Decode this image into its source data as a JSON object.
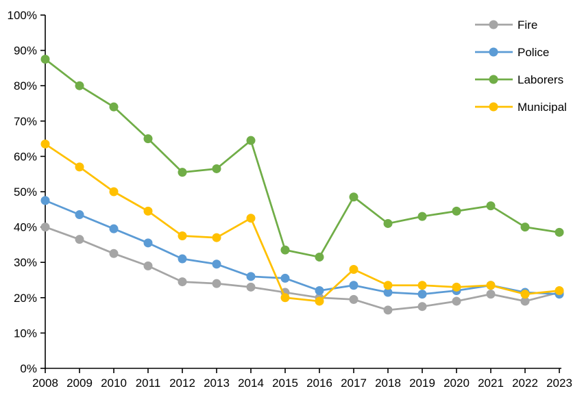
{
  "chart": {
    "background_color": "#ffffff",
    "axis_color": "#000000",
    "text_color": "#000000"
  },
  "chart_data": {
    "type": "line",
    "title": "",
    "xlabel": "",
    "ylabel": "",
    "categories": [
      "2008",
      "2009",
      "2010",
      "2011",
      "2012",
      "2013",
      "2014",
      "2015",
      "2016",
      "2017",
      "2018",
      "2019",
      "2020",
      "2021",
      "2022",
      "2023"
    ],
    "series": [
      {
        "name": "Fire",
        "color": "#A5A5A5",
        "values": [
          40,
          36.5,
          32.5,
          29,
          24.5,
          24,
          23,
          21.5,
          20,
          19.5,
          16.5,
          17.5,
          19,
          21,
          19,
          21.5
        ]
      },
      {
        "name": "Police",
        "color": "#5B9BD5",
        "values": [
          47.5,
          43.5,
          39.5,
          35.5,
          31,
          29.5,
          26,
          25.5,
          22,
          23.5,
          21.5,
          21,
          22,
          23.5,
          21.5,
          21
        ]
      },
      {
        "name": "Laborers",
        "color": "#70AD47",
        "values": [
          87.5,
          80,
          74,
          65,
          55.5,
          56.5,
          64.5,
          33.5,
          31.5,
          48.5,
          41,
          43,
          44.5,
          46,
          40,
          38.5
        ]
      },
      {
        "name": "Municipal",
        "color": "#FFC000",
        "values": [
          63.5,
          57,
          50,
          44.5,
          37.5,
          37,
          42.5,
          20,
          19,
          28,
          23.5,
          23.5,
          23,
          23.5,
          21,
          22
        ]
      }
    ],
    "ylim": [
      0,
      100
    ],
    "ytick_step": 10,
    "ytick_suffix": "%",
    "ytick_labels": [
      "0%",
      "10%",
      "20%",
      "30%",
      "40%",
      "50%",
      "60%",
      "70%",
      "80%",
      "90%",
      "100%"
    ],
    "grid": false,
    "legend": {
      "position": "top-right",
      "entries": [
        "Fire",
        "Police",
        "Laborers",
        "Municipal"
      ]
    },
    "marker": "circle"
  }
}
